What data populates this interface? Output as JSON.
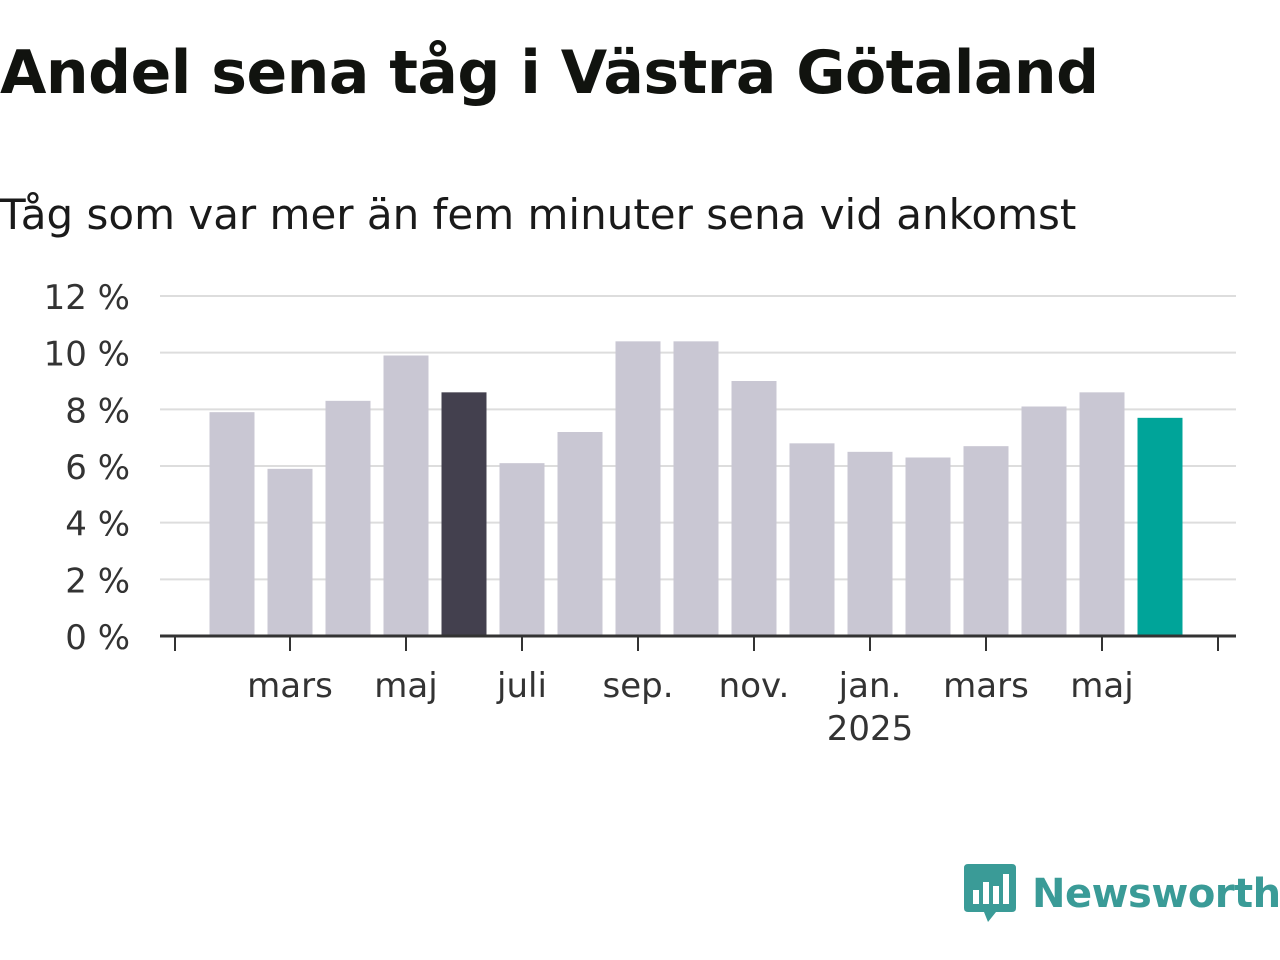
{
  "header": {
    "title": "Andel sena tåg i Västra Götaland",
    "subtitle": "Tåg som var mer än fem minuter sena vid ankomst"
  },
  "brand": {
    "name": "Newsworthy",
    "icon": "bar-chart-speech-bubble-icon",
    "color": "#3a9b97"
  },
  "colors": {
    "bar_default": "#c9c7d3",
    "bar_highlight_dark": "#43404e",
    "bar_highlight_current": "#00a499",
    "grid": "#dddddd",
    "axis": "#333333",
    "text": "#333333"
  },
  "chart_data": {
    "type": "bar",
    "title": "Andel sena tåg i Västra Götaland",
    "subtitle": "Tåg som var mer än fem minuter sena vid ankomst",
    "xlabel": "",
    "ylabel": "",
    "ylim": [
      0,
      12
    ],
    "y_ticks": [
      0,
      2,
      4,
      6,
      8,
      10,
      12
    ],
    "y_tick_labels": [
      "0 %",
      "2 %",
      "4 %",
      "6 %",
      "8 %",
      "10 %",
      "12 %"
    ],
    "grid": true,
    "legend": "none",
    "categories": [
      "2024-02",
      "2024-03",
      "2024-04",
      "2024-05",
      "2024-06",
      "2024-07",
      "2024-08",
      "2024-09",
      "2024-10",
      "2024-11",
      "2024-12",
      "2025-01",
      "2025-02",
      "2025-03",
      "2025-04",
      "2025-05",
      "2025-06"
    ],
    "values": [
      7.9,
      5.9,
      8.3,
      9.9,
      8.6,
      6.1,
      7.2,
      10.4,
      10.4,
      9.0,
      6.8,
      6.5,
      6.3,
      6.7,
      8.1,
      8.6,
      7.7
    ],
    "highlight": {
      "2024-06": "dark",
      "2025-06": "current"
    },
    "x_tick_labels": [
      {
        "category": "2024-03",
        "label": "mars",
        "sublabel": ""
      },
      {
        "category": "2024-05",
        "label": "maj",
        "sublabel": ""
      },
      {
        "category": "2024-07",
        "label": "juli",
        "sublabel": ""
      },
      {
        "category": "2024-09",
        "label": "sep.",
        "sublabel": ""
      },
      {
        "category": "2024-11",
        "label": "nov.",
        "sublabel": ""
      },
      {
        "category": "2025-01",
        "label": "jan.",
        "sublabel": "2025"
      },
      {
        "category": "2025-03",
        "label": "mars",
        "sublabel": ""
      },
      {
        "category": "2025-05",
        "label": "maj",
        "sublabel": ""
      }
    ]
  }
}
